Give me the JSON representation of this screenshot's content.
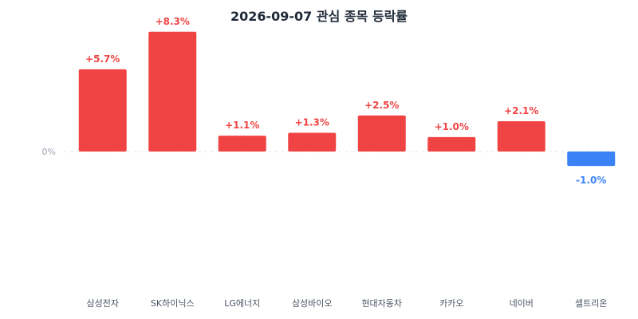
{
  "chart_data": {
    "type": "bar",
    "title": "2026-09-07 관심 종목 등락률",
    "categories": [
      "삼성전자",
      "SK하이닉스",
      "LG에너지",
      "삼성바이오",
      "현대자동차",
      "카카오",
      "네이버",
      "셀트리온"
    ],
    "values": [
      5.7,
      8.3,
      1.1,
      1.3,
      2.5,
      1.0,
      2.1,
      -1.0
    ],
    "value_labels": [
      "+5.7%",
      "+8.3%",
      "+1.1%",
      "+1.3%",
      "+2.5%",
      "+1.0%",
      "+2.1%",
      "-1.0%"
    ],
    "zero_tick_label": "0%",
    "grid": false,
    "colors": {
      "positive": "#f04444",
      "negative": "#3b82f6",
      "zero_line": "#e5e7eb"
    }
  }
}
